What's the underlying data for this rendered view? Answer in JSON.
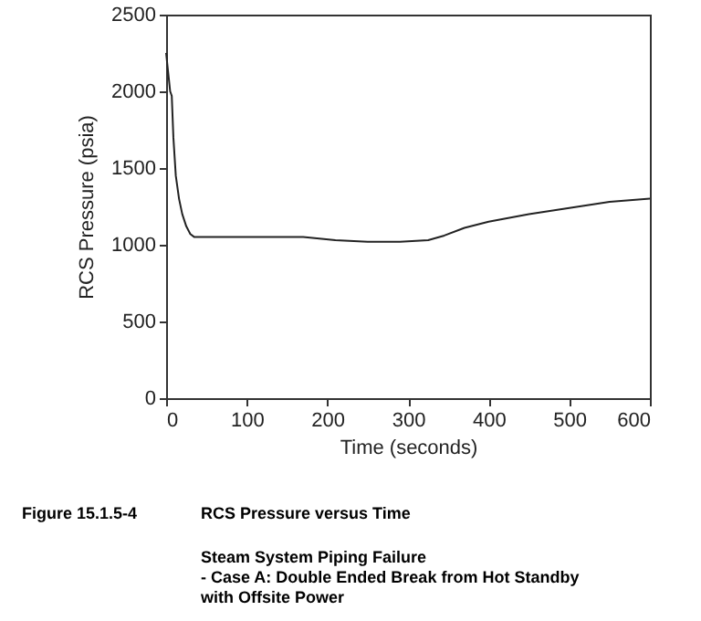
{
  "chart_data": {
    "type": "line",
    "title": "RCS Pressure versus Time",
    "subtitle": "Steam System Piping Failure\n- Case A: Double Ended Break from Hot Standby\nwith Offsite Power",
    "annotations": [
      "Figure 15.1.5-4"
    ],
    "xlabel": "Time (seconds)",
    "ylabel": "RCS Pressure (psia)",
    "x": [
      0,
      3,
      5,
      7,
      9,
      12,
      16,
      20,
      25,
      30,
      35,
      60,
      100,
      170,
      210,
      250,
      290,
      325,
      345,
      370,
      400,
      450,
      500,
      550,
      600
    ],
    "series": [
      {
        "color": "#222222",
        "values": [
          2250,
          2100,
          2000,
          1970,
          1700,
          1450,
          1300,
          1200,
          1120,
          1070,
          1050,
          1050,
          1050,
          1050,
          1030,
          1020,
          1020,
          1030,
          1060,
          1110,
          1150,
          1200,
          1240,
          1280,
          1300
        ]
      }
    ],
    "xlim": [
      0,
      600
    ],
    "xticks": [
      0,
      100,
      200,
      300,
      400,
      500,
      600
    ],
    "ylim": [
      0,
      2500
    ],
    "yticks": [
      0,
      500,
      1000,
      1500,
      2000,
      2500
    ],
    "grid": false,
    "marker": "none",
    "line_style": "solid"
  }
}
